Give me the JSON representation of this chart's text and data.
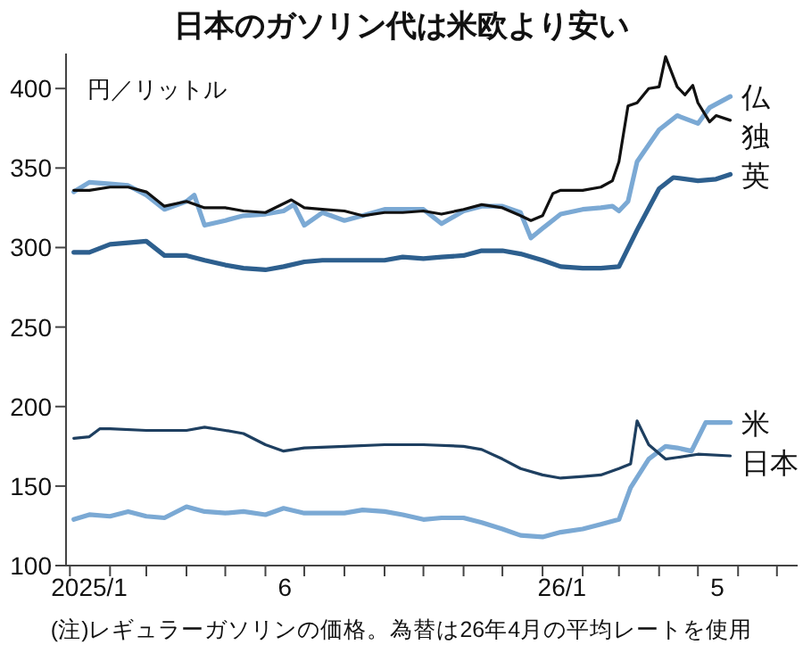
{
  "chart_data": {
    "type": "line",
    "title": "日本のガソリン代は米欧より安い",
    "ylabel": "円／リットル",
    "annotations": [
      "(注)レギュラーガソリンの価格。為替は26年4月の平均レートを使用"
    ],
    "xlim": [
      "2024-12-29",
      "2026-07-17"
    ],
    "xticks": [
      {
        "value": "2025-01-01",
        "label": null
      },
      {
        "value": "2025-01-16",
        "label": "2025/1"
      },
      {
        "value": "2025-02-01",
        "label": null
      },
      {
        "value": "2025-03-01",
        "label": null
      },
      {
        "value": "2025-04-01",
        "label": null
      },
      {
        "value": "2025-05-01",
        "label": null
      },
      {
        "value": "2025-06-01",
        "label": null
      },
      {
        "value": "2025-06-16",
        "label": "6"
      },
      {
        "value": "2025-07-01",
        "label": null
      },
      {
        "value": "2025-08-01",
        "label": null
      },
      {
        "value": "2025-09-01",
        "label": null
      },
      {
        "value": "2025-10-01",
        "label": null
      },
      {
        "value": "2025-11-01",
        "label": null
      },
      {
        "value": "2025-12-01",
        "label": null
      },
      {
        "value": "2026-01-01",
        "label": null
      },
      {
        "value": "2026-01-16",
        "label": "26/1"
      },
      {
        "value": "2026-02-01",
        "label": null
      },
      {
        "value": "2026-03-01",
        "label": null
      },
      {
        "value": "2026-04-01",
        "label": null
      },
      {
        "value": "2026-05-01",
        "label": null
      },
      {
        "value": "2026-05-16",
        "label": "5"
      },
      {
        "value": "2026-06-01",
        "label": null
      },
      {
        "value": "2026-07-01",
        "label": null
      }
    ],
    "ylim": [
      100,
      422
    ],
    "yticks": [
      100,
      150,
      200,
      250,
      300,
      350,
      400
    ],
    "line_style": "solid",
    "series": [
      {
        "name": "仏",
        "color": "#7ba9d4",
        "x": [
          "2025-01-04",
          "2025-01-16",
          "2025-02-01",
          "2025-02-15",
          "2025-03-01",
          "2025-03-15",
          "2025-04-01",
          "2025-04-07",
          "2025-04-15",
          "2025-05-01",
          "2025-05-15",
          "2025-06-01",
          "2025-06-15",
          "2025-06-23",
          "2025-07-01",
          "2025-07-15",
          "2025-08-01",
          "2025-08-15",
          "2025-09-01",
          "2025-09-15",
          "2025-10-01",
          "2025-10-15",
          "2025-11-01",
          "2025-11-15",
          "2025-12-01",
          "2025-12-15",
          "2025-12-23",
          "2026-01-01",
          "2026-01-15",
          "2026-02-01",
          "2026-02-15",
          "2026-02-24",
          "2026-03-01",
          "2026-03-08",
          "2026-03-15",
          "2026-04-01",
          "2026-04-15",
          "2026-05-01",
          "2026-05-10",
          "2026-05-26"
        ],
        "values": [
          335,
          341,
          340,
          339,
          333,
          324,
          329,
          333,
          314,
          317,
          320,
          321,
          323,
          327,
          314,
          322,
          317,
          320,
          324,
          324,
          324,
          315,
          323,
          326,
          326,
          322,
          306,
          312,
          321,
          324,
          325,
          326,
          323,
          329,
          354,
          374,
          383,
          378,
          388,
          395
        ]
      },
      {
        "name": "独",
        "color": "#111111",
        "x": [
          "2025-01-04",
          "2025-01-16",
          "2025-02-01",
          "2025-02-15",
          "2025-03-01",
          "2025-03-15",
          "2025-04-01",
          "2025-04-15",
          "2025-05-01",
          "2025-05-15",
          "2025-06-01",
          "2025-06-21",
          "2025-07-01",
          "2025-07-15",
          "2025-08-01",
          "2025-08-15",
          "2025-09-01",
          "2025-09-15",
          "2025-10-01",
          "2025-10-15",
          "2025-11-01",
          "2025-11-15",
          "2025-12-01",
          "2025-12-15",
          "2025-12-23",
          "2026-01-01",
          "2026-01-09",
          "2026-01-15",
          "2026-02-01",
          "2026-02-15",
          "2026-02-24",
          "2026-03-01",
          "2026-03-08",
          "2026-03-15",
          "2026-03-24",
          "2026-04-01",
          "2026-04-06",
          "2026-04-15",
          "2026-04-21",
          "2026-04-27",
          "2026-05-01",
          "2026-05-10",
          "2026-05-15",
          "2026-05-26"
        ],
        "values": [
          336,
          336,
          338,
          338,
          335,
          326,
          329,
          325,
          325,
          323,
          322,
          330,
          325,
          324,
          323,
          320,
          322,
          322,
          323,
          321,
          324,
          327,
          325,
          320,
          317,
          320,
          334,
          336,
          336,
          338,
          342,
          354,
          389,
          391,
          400,
          401,
          420,
          401,
          396,
          402,
          391,
          379,
          383,
          380
        ]
      },
      {
        "name": "英",
        "color": "#2d5f8e",
        "x": [
          "2025-01-04",
          "2025-01-16",
          "2025-02-01",
          "2025-02-15",
          "2025-03-01",
          "2025-03-15",
          "2025-04-01",
          "2025-04-15",
          "2025-05-01",
          "2025-05-15",
          "2025-06-01",
          "2025-06-15",
          "2025-07-01",
          "2025-07-15",
          "2025-08-01",
          "2025-08-15",
          "2025-09-01",
          "2025-09-15",
          "2025-10-01",
          "2025-10-15",
          "2025-11-01",
          "2025-11-15",
          "2025-12-01",
          "2025-12-15",
          "2026-01-01",
          "2026-01-15",
          "2026-02-01",
          "2026-02-15",
          "2026-03-01",
          "2026-03-15",
          "2026-04-01",
          "2026-04-12",
          "2026-05-01",
          "2026-05-15",
          "2026-05-26"
        ],
        "values": [
          297,
          297,
          302,
          303,
          304,
          295,
          295,
          292,
          289,
          287,
          286,
          288,
          291,
          292,
          292,
          292,
          292,
          294,
          293,
          294,
          295,
          298,
          298,
          296,
          292,
          288,
          287,
          287,
          288,
          311,
          337,
          344,
          342,
          343,
          346
        ]
      },
      {
        "name": "米",
        "color": "#7ba9d4",
        "x": [
          "2025-01-04",
          "2025-01-16",
          "2025-02-01",
          "2025-02-15",
          "2025-03-01",
          "2025-03-15",
          "2025-04-01",
          "2025-04-15",
          "2025-05-01",
          "2025-05-15",
          "2025-06-01",
          "2025-06-15",
          "2025-07-01",
          "2025-07-15",
          "2025-08-01",
          "2025-08-15",
          "2025-09-01",
          "2025-09-15",
          "2025-10-01",
          "2025-10-15",
          "2025-11-01",
          "2025-11-15",
          "2025-12-01",
          "2025-12-15",
          "2026-01-01",
          "2026-01-15",
          "2026-02-01",
          "2026-02-15",
          "2026-03-01",
          "2026-03-10",
          "2026-03-24",
          "2026-04-06",
          "2026-04-15",
          "2026-04-26",
          "2026-05-07",
          "2026-05-26"
        ],
        "values": [
          129,
          132,
          131,
          134,
          131,
          130,
          137,
          134,
          133,
          134,
          132,
          136,
          133,
          133,
          133,
          135,
          134,
          132,
          129,
          130,
          130,
          127,
          123,
          119,
          118,
          121,
          123,
          126,
          129,
          149,
          167,
          175,
          174,
          172,
          190,
          190
        ]
      },
      {
        "name": "日本",
        "color": "#1e3f60",
        "x": [
          "2025-01-04",
          "2025-01-16",
          "2025-01-24",
          "2025-02-01",
          "2025-03-01",
          "2025-04-01",
          "2025-04-15",
          "2025-05-01",
          "2025-05-15",
          "2025-06-01",
          "2025-06-15",
          "2025-07-01",
          "2025-08-01",
          "2025-09-01",
          "2025-10-01",
          "2025-11-01",
          "2025-11-15",
          "2025-12-01",
          "2025-12-15",
          "2026-01-01",
          "2026-01-15",
          "2026-02-01",
          "2026-02-15",
          "2026-03-01",
          "2026-03-10",
          "2026-03-15",
          "2026-03-24",
          "2026-04-06",
          "2026-04-15",
          "2026-05-01",
          "2026-05-26"
        ],
        "values": [
          180,
          181,
          186,
          186,
          185,
          185,
          187,
          185,
          183,
          176,
          172,
          174,
          175,
          176,
          176,
          175,
          173,
          167,
          161,
          157,
          155,
          156,
          157,
          161,
          164,
          191,
          176,
          167,
          168,
          170,
          169
        ]
      }
    ]
  }
}
